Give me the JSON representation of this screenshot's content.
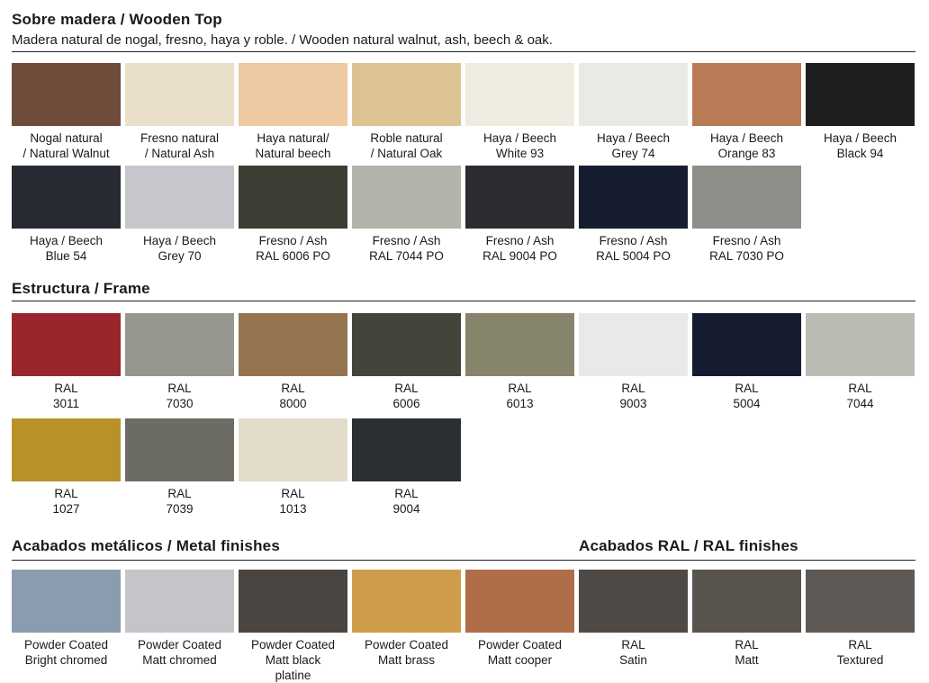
{
  "wood": {
    "title": "Sobre madera / Wooden Top",
    "subtitle": "Madera natural de nogal, fresno, haya y roble. / Wooden natural walnut, ash, beech & oak.",
    "items": [
      {
        "l1": "Nogal natural",
        "l2": "/ Natural Walnut",
        "color": "#6e4b3a"
      },
      {
        "l1": "Fresno natural",
        "l2": "/ Natural Ash",
        "color": "#eadfc8"
      },
      {
        "l1": "Haya natural/",
        "l2": "Natural beech",
        "color": "#efc9a2"
      },
      {
        "l1": "Roble natural",
        "l2": "/ Natural Oak",
        "color": "#dcc394"
      },
      {
        "l1": "Haya / Beech",
        "l2": "White 93",
        "color": "#efebe0"
      },
      {
        "l1": "Haya / Beech",
        "l2": "Grey 74",
        "color": "#e8eae6"
      },
      {
        "l1": "Haya / Beech",
        "l2": "Orange 83",
        "color": "#b97a58"
      },
      {
        "l1": "Haya / Beech",
        "l2": "Black 94",
        "color": "#1f1f22"
      },
      {
        "l1": "Haya / Beech",
        "l2": "Blue 54",
        "color": "#272a33"
      },
      {
        "l1": "Haya / Beech",
        "l2": "Grey 70",
        "color": "#c6c6cc"
      },
      {
        "l1": "Fresno / Ash",
        "l2": "RAL 6006 PO",
        "color": "#3d3d33"
      },
      {
        "l1": "Fresno / Ash",
        "l2": "RAL 7044 PO",
        "color": "#b3b3ac"
      },
      {
        "l1": "Fresno / Ash",
        "l2": "RAL 9004 PO",
        "color": "#2a2c2f"
      },
      {
        "l1": "Fresno / Ash",
        "l2": "RAL 5004 PO",
        "color": "#171d30"
      },
      {
        "l1": "Fresno / Ash",
        "l2": "RAL 7030 PO",
        "color": "#8f8f89"
      }
    ]
  },
  "frame": {
    "title": "Estructura / Frame",
    "items": [
      {
        "l1": "RAL",
        "l2": "3011",
        "color": "#98262b"
      },
      {
        "l1": "RAL",
        "l2": "7030",
        "color": "#96958e"
      },
      {
        "l1": "RAL",
        "l2": "8000",
        "color": "#957550"
      },
      {
        "l1": "RAL",
        "l2": "6006",
        "color": "#45443b"
      },
      {
        "l1": "RAL",
        "l2": "6013",
        "color": "#86856c"
      },
      {
        "l1": "RAL",
        "l2": "9003",
        "color": "#e9eae7"
      },
      {
        "l1": "RAL",
        "l2": "5004",
        "color": "#151c30"
      },
      {
        "l1": "RAL",
        "l2": "7044",
        "color": "#bcbbb3"
      },
      {
        "l1": "RAL",
        "l2": "1027",
        "color": "#b89228"
      },
      {
        "l1": "RAL",
        "l2": "7039",
        "color": "#6c6b64"
      },
      {
        "l1": "RAL",
        "l2": "1013",
        "color": "#e4dccb"
      },
      {
        "l1": "RAL",
        "l2": "9004",
        "color": "#2b2e32"
      }
    ]
  },
  "metal": {
    "title": "Acabados metálicos / Metal finishes",
    "items": [
      {
        "l1": "Powder Coated",
        "l2": "Bright chromed",
        "color": "#8c9cb0"
      },
      {
        "l1": "Powder Coated",
        "l2": "Matt chromed",
        "color": "#c4c5c9"
      },
      {
        "l1": "Powder Coated",
        "l2": "Matt black",
        "l3": "platine",
        "color": "#4a4541"
      },
      {
        "l1": "Powder Coated",
        "l2": "Matt brass",
        "color": "#cf9c4c"
      },
      {
        "l1": "Powder Coated",
        "l2": "Matt cooper",
        "color": "#b06d49"
      }
    ]
  },
  "ral_finishes": {
    "title": "Acabados RAL / RAL finishes",
    "items": [
      {
        "l1": "RAL",
        "l2": "Satin",
        "color": "#4f4a45"
      },
      {
        "l1": "RAL",
        "l2": "Matt",
        "color": "#5a544e"
      },
      {
        "l1": "RAL",
        "l2": "Textured",
        "color": "#5e5955"
      }
    ]
  }
}
